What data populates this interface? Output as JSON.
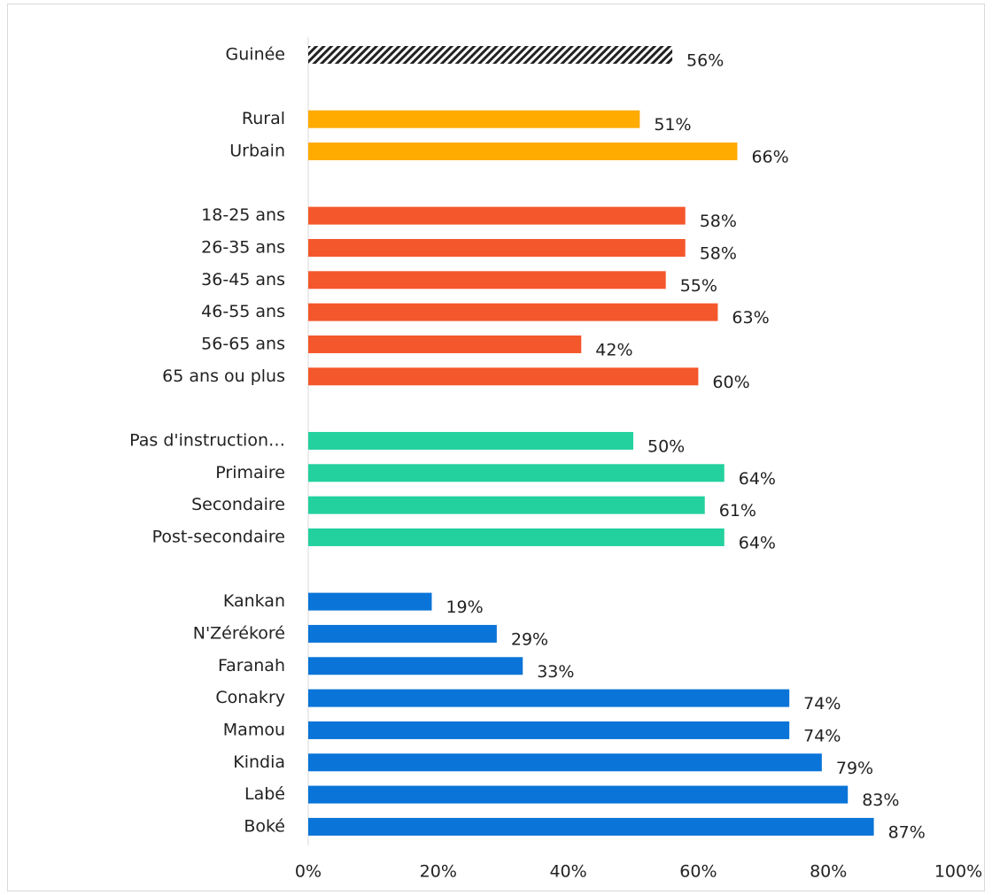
{
  "chart_data": {
    "type": "bar",
    "orientation": "horizontal",
    "categories": [
      "Guinée",
      null,
      "Rural",
      "Urbain",
      null,
      "18-25 ans",
      "26-35 ans",
      "36-45 ans",
      "46-55 ans",
      "56-65 ans",
      "65 ans ou plus",
      null,
      "Pas d'instruction…",
      "Primaire",
      "Secondaire",
      "Post-secondaire",
      null,
      "Kankan",
      "N'Zérékoré",
      "Faranah",
      "Conakry",
      "Mamou",
      "Kindia",
      "Labé",
      "Boké"
    ],
    "values": [
      56,
      null,
      51,
      66,
      null,
      58,
      58,
      55,
      63,
      42,
      60,
      null,
      50,
      64,
      61,
      64,
      null,
      19,
      29,
      33,
      74,
      74,
      79,
      83,
      87
    ],
    "value_labels": [
      "56%",
      null,
      "51%",
      "66%",
      null,
      "58%",
      "58%",
      "55%",
      "63%",
      "42%",
      "60%",
      null,
      "50%",
      "64%",
      "61%",
      "64%",
      null,
      "19%",
      "29%",
      "33%",
      "74%",
      "74%",
      "79%",
      "83%",
      "87%"
    ],
    "colors": [
      "#222222",
      null,
      "#ffab00",
      "#ffab00",
      null,
      "#f4572b",
      "#f4572b",
      "#f4572b",
      "#f4572b",
      "#f4572b",
      "#f4572b",
      null,
      "#23d19e",
      "#23d19e",
      "#23d19e",
      "#23d19e",
      null,
      "#0a74d8",
      "#0a74d8",
      "#0a74d8",
      "#0a74d8",
      "#0a74d8",
      "#0a74d8",
      "#0a74d8",
      "#0a74d8"
    ],
    "hatch": [
      0
    ],
    "xlim": [
      0,
      100
    ],
    "xticks": [
      {
        "value": 0,
        "label": "0%"
      },
      {
        "value": 20,
        "label": "20%"
      },
      {
        "value": 40,
        "label": "40%"
      },
      {
        "value": 60,
        "label": "60%"
      },
      {
        "value": 80,
        "label": "80%"
      },
      {
        "value": 100,
        "label": "100%"
      }
    ],
    "grid": false
  }
}
